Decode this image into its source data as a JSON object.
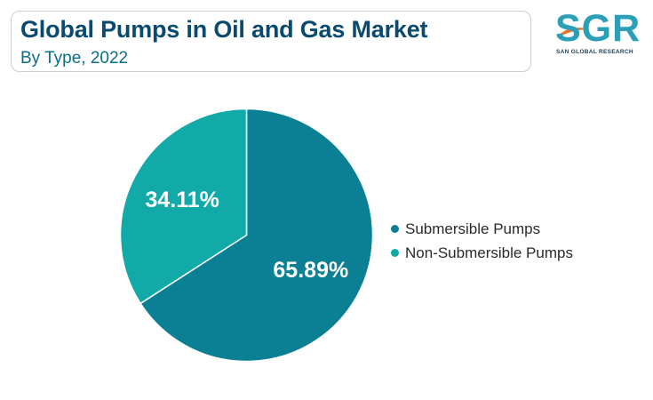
{
  "header": {
    "title": "Global Pumps in Oil and Gas Market",
    "subtitle": "By Type, 2022"
  },
  "logo": {
    "letters": "SGR",
    "tagline": "SAN GLOBAL RESEARCH",
    "color": "#2b9fb7",
    "swoosh_color": "#e8752a"
  },
  "chart_data": {
    "type": "pie",
    "start": "12 o'clock, clockwise",
    "slices": [
      {
        "name": "Submersible Pumps",
        "value": 65.89,
        "label": "65.89%",
        "color": "#0b7f94"
      },
      {
        "name": "Non-Submersible Pumps",
        "value": 34.11,
        "label": "34.11%",
        "color": "#12aaa9"
      }
    ],
    "legend": "right",
    "slice_border_color": "#ffffff"
  }
}
